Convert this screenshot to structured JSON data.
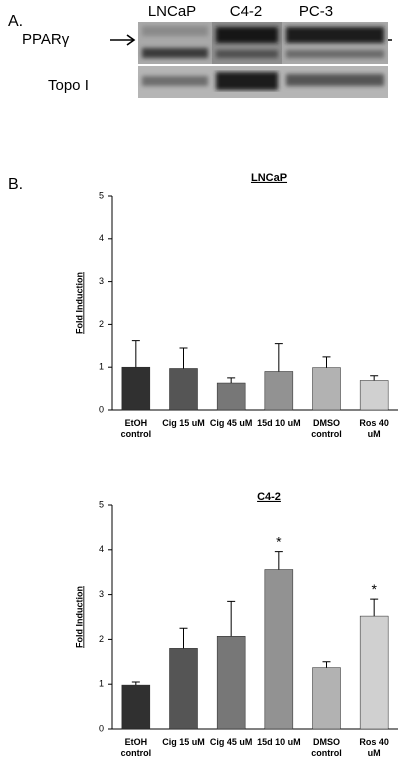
{
  "panel_a": {
    "label": "A.",
    "lanes": [
      "LNCaP",
      "C4-2",
      "PC-3"
    ],
    "bands": [
      "PPARγ",
      "Topo I"
    ]
  },
  "panel_b": {
    "label": "B."
  },
  "chart_data": [
    {
      "type": "bar",
      "title": "LNCaP",
      "y_label": "Fold Induction",
      "categories": [
        "EtOH control",
        "Cig 15 uM",
        "Cig 45 uM",
        "15d 10 uM",
        "DMSO control",
        "Ros 40 uM"
      ],
      "values": [
        1.0,
        0.97,
        0.63,
        0.9,
        0.99,
        0.69
      ],
      "errors": [
        0.62,
        0.48,
        0.12,
        0.65,
        0.25,
        0.11
      ],
      "colors": [
        "#303030",
        "#555555",
        "#777777",
        "#929292",
        "#b2b2b2",
        "#d0d0d0"
      ],
      "ylim": [
        0,
        5
      ],
      "yticks": [
        0,
        1,
        2,
        3,
        4,
        5
      ],
      "grid": false
    },
    {
      "type": "bar",
      "title": "C4-2",
      "y_label": "Fold Induction",
      "categories": [
        "EtOH control",
        "Cig 15 uM",
        "Cig 45 uM",
        "15d 10 uM",
        "DMSO control",
        "Ros 40 uM"
      ],
      "values": [
        0.98,
        1.8,
        2.07,
        3.56,
        1.37,
        2.52
      ],
      "errors": [
        0.07,
        0.45,
        0.78,
        0.4,
        0.13,
        0.38
      ],
      "colors": [
        "#303030",
        "#555555",
        "#777777",
        "#929292",
        "#b2b2b2",
        "#d0d0d0"
      ],
      "ylim": [
        0,
        5
      ],
      "yticks": [
        0,
        1,
        2,
        3,
        4,
        5
      ],
      "grid": false,
      "annotations": [
        {
          "text": "*",
          "category": "15d 10 uM"
        },
        {
          "text": "*",
          "category": "Ros 40 uM"
        }
      ]
    }
  ]
}
